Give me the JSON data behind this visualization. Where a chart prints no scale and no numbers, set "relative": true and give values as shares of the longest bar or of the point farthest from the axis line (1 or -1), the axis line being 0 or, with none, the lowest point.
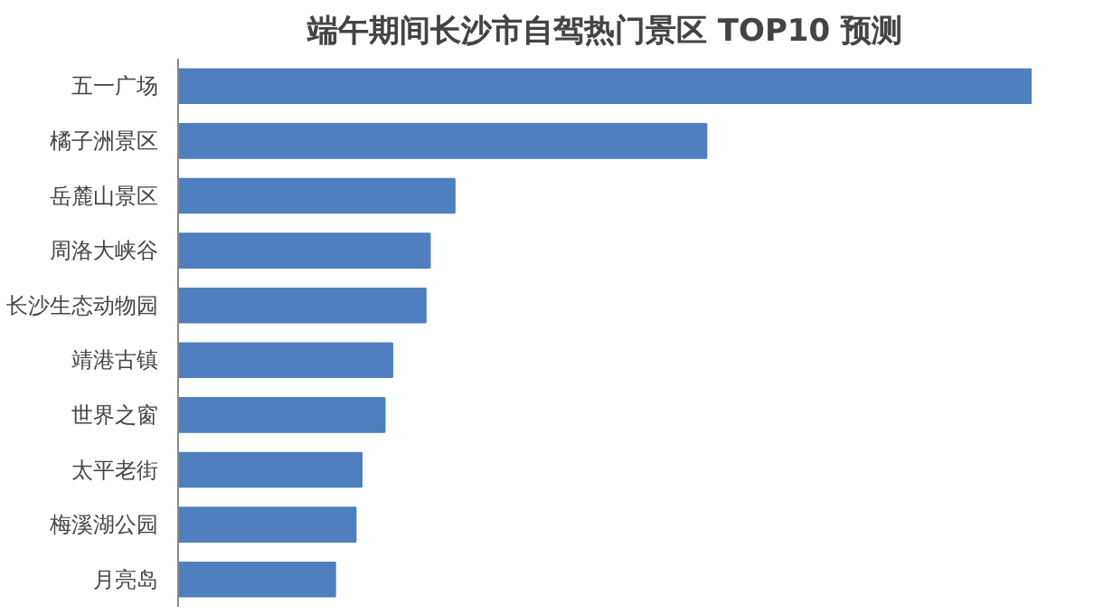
{
  "chart_data": {
    "type": "bar",
    "orientation": "horizontal",
    "relative": true,
    "title": "端午期间长沙市自驾热门景区 TOP10 预测",
    "categories": [
      "五一广场",
      "橘子洲景区",
      "岳麓山景区",
      "周洛大峡谷",
      "长沙生态动物园",
      "靖港古镇",
      "世界之窗",
      "太平老街",
      "梅溪湖公园",
      "月亮岛"
    ],
    "values": [
      1,
      0.619,
      0.324,
      0.295,
      0.29,
      0.251,
      0.242,
      0.215,
      0.208,
      0.184
    ],
    "color": "#4f7fbe",
    "grid": false
  }
}
